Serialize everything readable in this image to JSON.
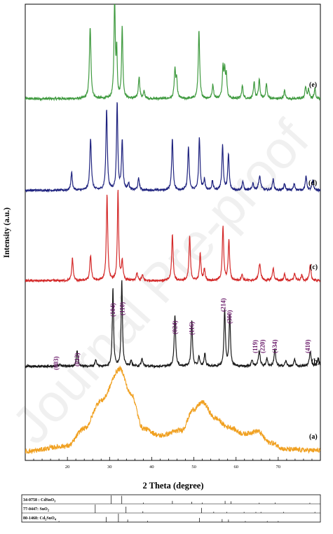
{
  "chart_data": {
    "type": "line",
    "xlabel": "2 Theta (degree)",
    "ylabel": "Intensity (a.u.)",
    "xlim": [
      10,
      80
    ],
    "x_ticks": [
      20,
      30,
      40,
      50,
      60,
      70
    ],
    "grid": false,
    "series": [
      {
        "name": "(e)",
        "color": "#3f9a3f",
        "baseline": 0.05,
        "noise": 0.012,
        "background": [],
        "peaks": [
          [
            25.4,
            0.72,
            0.22
          ],
          [
            31.2,
            1.0,
            0.18
          ],
          [
            31.7,
            0.45,
            0.15
          ],
          [
            33.0,
            0.72,
            0.18
          ],
          [
            37.0,
            0.22,
            0.2
          ],
          [
            38.2,
            0.07,
            0.2
          ],
          [
            45.5,
            0.28,
            0.2
          ],
          [
            45.9,
            0.18,
            0.18
          ],
          [
            51.2,
            0.68,
            0.2
          ],
          [
            54.5,
            0.14,
            0.2
          ],
          [
            56.9,
            0.3,
            0.2
          ],
          [
            57.3,
            0.25,
            0.18
          ],
          [
            57.7,
            0.22,
            0.18
          ],
          [
            61.5,
            0.13,
            0.2
          ],
          [
            64.3,
            0.16,
            0.2
          ],
          [
            65.5,
            0.19,
            0.2
          ],
          [
            67.2,
            0.15,
            0.2
          ],
          [
            71.5,
            0.08,
            0.2
          ],
          [
            76.5,
            0.12,
            0.2
          ],
          [
            77.2,
            0.09,
            0.2
          ],
          [
            78.7,
            0.1,
            0.2
          ]
        ]
      },
      {
        "name": "(d)",
        "color": "#1f237f",
        "baseline": 0.05,
        "noise": 0.012,
        "background": [],
        "peaks": [
          [
            21.0,
            0.2,
            0.2
          ],
          [
            25.5,
            0.58,
            0.22
          ],
          [
            29.3,
            0.9,
            0.2
          ],
          [
            31.8,
            0.98,
            0.18
          ],
          [
            33.0,
            0.55,
            0.2
          ],
          [
            34.5,
            0.08,
            0.2
          ],
          [
            36.9,
            0.13,
            0.22
          ],
          [
            44.9,
            0.58,
            0.2
          ],
          [
            48.7,
            0.48,
            0.2
          ],
          [
            51.3,
            0.58,
            0.2
          ],
          [
            52.5,
            0.12,
            0.2
          ],
          [
            54.4,
            0.1,
            0.2
          ],
          [
            56.8,
            0.5,
            0.2
          ],
          [
            58.2,
            0.4,
            0.2
          ],
          [
            61.6,
            0.1,
            0.2
          ],
          [
            64.0,
            0.08,
            0.2
          ],
          [
            65.6,
            0.15,
            0.3
          ],
          [
            68.8,
            0.12,
            0.22
          ],
          [
            71.5,
            0.07,
            0.22
          ],
          [
            73.8,
            0.07,
            0.22
          ],
          [
            76.6,
            0.15,
            0.22
          ],
          [
            78.2,
            0.1,
            0.22
          ]
        ]
      },
      {
        "name": "(c)",
        "color": "#d42a2a",
        "baseline": 0.05,
        "noise": 0.012,
        "background": [],
        "peaks": [
          [
            21.2,
            0.25,
            0.2
          ],
          [
            25.5,
            0.28,
            0.22
          ],
          [
            29.4,
            0.95,
            0.2
          ],
          [
            32.0,
            1.0,
            0.18
          ],
          [
            33.0,
            0.22,
            0.2
          ],
          [
            36.5,
            0.08,
            0.22
          ],
          [
            37.8,
            0.06,
            0.22
          ],
          [
            44.9,
            0.52,
            0.2
          ],
          [
            49.0,
            0.5,
            0.2
          ],
          [
            51.5,
            0.3,
            0.2
          ],
          [
            52.5,
            0.13,
            0.2
          ],
          [
            56.9,
            0.6,
            0.2
          ],
          [
            58.3,
            0.45,
            0.2
          ],
          [
            61.4,
            0.07,
            0.22
          ],
          [
            65.6,
            0.18,
            0.3
          ],
          [
            68.8,
            0.14,
            0.22
          ],
          [
            71.5,
            0.07,
            0.22
          ],
          [
            73.9,
            0.08,
            0.22
          ],
          [
            75.6,
            0.06,
            0.22
          ],
          [
            77.6,
            0.17,
            0.22
          ]
        ]
      },
      {
        "name": "(b)",
        "color": "#1a1a1a",
        "baseline": 0.04,
        "noise": 0.01,
        "background": [],
        "peaks": [
          [
            18.2,
            0.02,
            0.3
          ],
          [
            22.3,
            0.14,
            0.22
          ],
          [
            26.7,
            0.06,
            0.22
          ],
          [
            30.8,
            0.72,
            0.18
          ],
          [
            32.9,
            0.8,
            0.18
          ],
          [
            35.1,
            0.05,
            0.22
          ],
          [
            37.7,
            0.07,
            0.22
          ],
          [
            45.5,
            0.48,
            0.2
          ],
          [
            49.5,
            0.42,
            0.2
          ],
          [
            51.2,
            0.09,
            0.2
          ],
          [
            52.6,
            0.12,
            0.2
          ],
          [
            57.3,
            0.52,
            0.2
          ],
          [
            58.5,
            0.47,
            0.2
          ],
          [
            63.8,
            0.06,
            0.22
          ],
          [
            65.5,
            0.14,
            0.25
          ],
          [
            67.3,
            0.07,
            0.22
          ],
          [
            69.2,
            0.16,
            0.22
          ],
          [
            71.8,
            0.05,
            0.22
          ],
          [
            73.9,
            0.06,
            0.22
          ],
          [
            77.6,
            0.14,
            0.25
          ],
          [
            79.5,
            0.08,
            0.22
          ]
        ]
      },
      {
        "name": "(a)",
        "color": "#f0a020",
        "baseline": 0.04,
        "noise": 0.028,
        "background": [
          [
            10,
            0.04
          ],
          [
            20,
            0.1
          ],
          [
            24,
            0.3
          ],
          [
            28,
            0.62
          ],
          [
            32.5,
            0.98
          ],
          [
            35,
            0.7
          ],
          [
            38,
            0.3
          ],
          [
            42,
            0.22
          ],
          [
            47,
            0.28
          ],
          [
            50,
            0.52
          ],
          [
            52,
            0.6
          ],
          [
            55,
            0.42
          ],
          [
            58,
            0.32
          ],
          [
            62,
            0.24
          ],
          [
            65,
            0.27
          ],
          [
            68,
            0.14
          ],
          [
            72,
            0.06
          ],
          [
            80,
            0.05
          ]
        ],
        "peaks": []
      }
    ],
    "peak_labels": [
      {
        "text": "(003)",
        "x": 17.3
      },
      {
        "text": "(012)",
        "x": 22.3
      },
      {
        "text": "(104)",
        "x": 30.8
      },
      {
        "text": "(110)",
        "x": 33.0
      },
      {
        "text": "(024)",
        "x": 45.5
      },
      {
        "text": "(116)",
        "x": 49.5
      },
      {
        "text": "(214)",
        "x": 57.0
      },
      {
        "text": "(300)",
        "x": 58.5
      },
      {
        "text": "(119)",
        "x": 64.5
      },
      {
        "text": "(220)",
        "x": 66.3
      },
      {
        "text": "(134)",
        "x": 69.2
      },
      {
        "text": "(410)",
        "x": 77.0
      }
    ],
    "reference_patterns": [
      {
        "label": "34-0758 : CdSnO",
        "sub": "3",
        "lines": [
          [
            30.4,
            1.0
          ],
          [
            32.9,
            0.95
          ],
          [
            38.0,
            0.15
          ],
          [
            44.9,
            0.35
          ],
          [
            49.5,
            0.25
          ],
          [
            52.0,
            0.15
          ],
          [
            57.4,
            0.35
          ],
          [
            58.8,
            0.3
          ],
          [
            65.5,
            0.1
          ],
          [
            69.3,
            0.15
          ],
          [
            77.5,
            0.12
          ]
        ]
      },
      {
        "label": "77-0447: SnO",
        "sub": "2",
        "lines": [
          [
            26.6,
            1.0
          ],
          [
            33.9,
            0.75
          ],
          [
            37.9,
            0.2
          ],
          [
            51.8,
            0.6
          ],
          [
            54.7,
            0.15
          ],
          [
            57.8,
            0.08
          ],
          [
            61.9,
            0.12
          ],
          [
            64.7,
            0.12
          ],
          [
            65.9,
            0.1
          ],
          [
            71.3,
            0.07
          ],
          [
            78.7,
            0.08
          ]
        ]
      },
      {
        "label": "80-1468: Cd",
        "sub": "2",
        "label2": "SnO",
        "sub2": "4",
        "lines": [
          [
            18.0,
            0.1
          ],
          [
            29.2,
            0.6
          ],
          [
            32.1,
            1.0
          ],
          [
            34.3,
            0.3
          ],
          [
            39.0,
            0.15
          ],
          [
            51.3,
            0.5
          ],
          [
            56.7,
            0.35
          ],
          [
            58.2,
            0.3
          ],
          [
            62.2,
            0.12
          ],
          [
            67.4,
            0.1
          ],
          [
            70.0,
            0.1
          ]
        ]
      }
    ],
    "watermark": "Journal Pre-proof"
  }
}
